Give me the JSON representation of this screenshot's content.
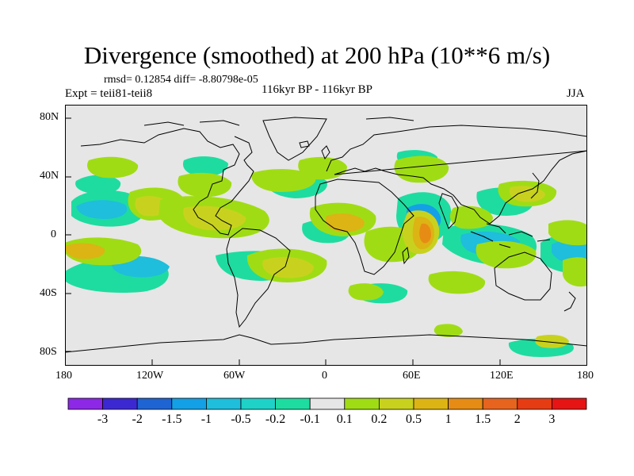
{
  "header": {
    "title": "Divergence (smoothed) at 200 hPa (10**6 m/s)",
    "stats": "rmsd= 0.12854  diff= -8.80798e-05",
    "expt": "Expt = teii81-teii8",
    "period": "116kyr BP - 116kyr BP",
    "season": "JJA"
  },
  "axes": {
    "lat_labels": [
      "80N",
      "40N",
      "0",
      "40S",
      "80S"
    ],
    "lon_labels": [
      "180",
      "120W",
      "60W",
      "0",
      "60E",
      "120E",
      "180"
    ]
  },
  "colorbar": {
    "labels": [
      "-3",
      "-2",
      "-1.5",
      "-1",
      "-0.5",
      "-0.2",
      "-0.1",
      "0.1",
      "0.2",
      "0.5",
      "1",
      "1.5",
      "2",
      "3"
    ],
    "colors": [
      "#8c28e6",
      "#3c28d2",
      "#1e64d2",
      "#14a0e6",
      "#1ebedc",
      "#1ed2c8",
      "#1edca0",
      "#e6e6e6",
      "#a0dc14",
      "#c8d21e",
      "#dcb414",
      "#e68c14",
      "#e6641e",
      "#e63c14",
      "#e61414"
    ]
  },
  "map": {
    "background_color": "#e6e6e6",
    "coastline_color": "#000000"
  }
}
